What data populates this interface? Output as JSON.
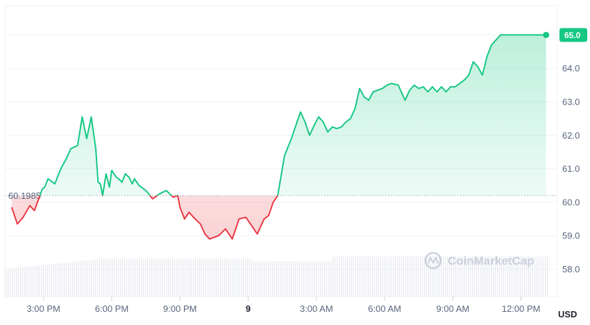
{
  "chart_data": {
    "type": "line",
    "x_ticks": [
      "3:00 PM",
      "6:00 PM",
      "9:00 PM",
      "9",
      "3:00 AM",
      "6:00 AM",
      "9:00 AM",
      "12:00 PM"
    ],
    "x_tick_hours": [
      3,
      6,
      9,
      12,
      15,
      18,
      21,
      24
    ],
    "bold_x_tick": "9",
    "x_range_hours": [
      1.3,
      25.2
    ],
    "y_ticks": [
      58.0,
      59.0,
      60.0,
      61.0,
      62.0,
      63.0,
      64.0,
      65.0
    ],
    "y_tick_labels": [
      "58.0",
      "59.0",
      "60.0",
      "61.0",
      "62.0",
      "63.0",
      "64.0",
      "65.0"
    ],
    "ylim": [
      57.2,
      65.9
    ],
    "unit": "USD",
    "reference_value": 60.1985,
    "reference_label": "60.1985",
    "current_value": 65.0,
    "current_label": "65.0",
    "above_color": "#16c784",
    "below_color": "#ea3943",
    "watermark": "CoinMarketCap",
    "series": [
      {
        "x": [
          1.6,
          1.85,
          2.1,
          2.4,
          2.6,
          2.95,
          3.05,
          3.2,
          3.5,
          3.7,
          3.8,
          4.0,
          4.2,
          4.5,
          4.7,
          4.9,
          5.1,
          5.3,
          5.4,
          5.5,
          5.6,
          5.75,
          5.9,
          6.0,
          6.2,
          6.3,
          6.45,
          6.6,
          6.75,
          6.9,
          7.0,
          7.2,
          7.5,
          7.8,
          8.1,
          8.4,
          8.7,
          8.9,
          9.0,
          9.2,
          9.4,
          9.6,
          9.9,
          10.1,
          10.3,
          10.5,
          10.7,
          11.0,
          11.3,
          11.6,
          11.9,
          12.1,
          12.4,
          12.7,
          12.9,
          13.1,
          13.3,
          13.6,
          13.9,
          14.1,
          14.3,
          14.5,
          14.7,
          14.9,
          15.1,
          15.3,
          15.5,
          15.7,
          15.9,
          16.1,
          16.3,
          16.5,
          16.7,
          16.9,
          17.1,
          17.3,
          17.5,
          17.7,
          17.9,
          18.1,
          18.3,
          18.6,
          18.9,
          19.1,
          19.3,
          19.5,
          19.7,
          19.9,
          20.1,
          20.3,
          20.5,
          20.7,
          20.9,
          21.1,
          21.3,
          21.5,
          21.7,
          21.9,
          22.1,
          22.3,
          22.5,
          22.7,
          22.9,
          23.1,
          23.3,
          23.5,
          23.7,
          23.9,
          24.1,
          24.3,
          24.5,
          24.7,
          24.9,
          25.1
        ],
        "values": [
          59.85,
          59.35,
          59.55,
          59.9,
          59.75,
          60.4,
          60.45,
          60.7,
          60.55,
          60.9,
          61.05,
          61.3,
          61.6,
          61.7,
          62.55,
          61.9,
          62.55,
          61.6,
          60.6,
          60.55,
          60.2,
          60.85,
          60.45,
          60.95,
          60.75,
          60.7,
          60.6,
          60.85,
          60.75,
          60.55,
          60.7,
          60.5,
          60.35,
          60.1,
          60.25,
          60.35,
          60.15,
          60.2,
          59.85,
          59.5,
          59.7,
          59.55,
          59.35,
          59.05,
          58.9,
          58.95,
          59.0,
          59.2,
          58.9,
          59.5,
          59.55,
          59.35,
          59.05,
          59.5,
          59.6,
          60.0,
          60.2,
          61.4,
          61.9,
          62.3,
          62.7,
          62.4,
          62.0,
          62.3,
          62.55,
          62.4,
          62.1,
          62.25,
          62.2,
          62.25,
          62.4,
          62.5,
          62.8,
          63.4,
          63.15,
          63.05,
          63.3,
          63.35,
          63.4,
          63.5,
          63.55,
          63.5,
          63.05,
          63.35,
          63.5,
          63.4,
          63.45,
          63.3,
          63.45,
          63.3,
          63.45,
          63.3,
          63.45,
          63.45,
          63.55,
          63.65,
          63.8,
          64.2,
          64.05,
          63.8,
          64.35,
          64.7,
          64.85,
          65.0,
          65.0,
          65.0,
          65.0,
          65.0,
          65.0,
          65.0,
          65.0,
          65.0,
          65.0,
          65.0
        ]
      }
    ]
  }
}
